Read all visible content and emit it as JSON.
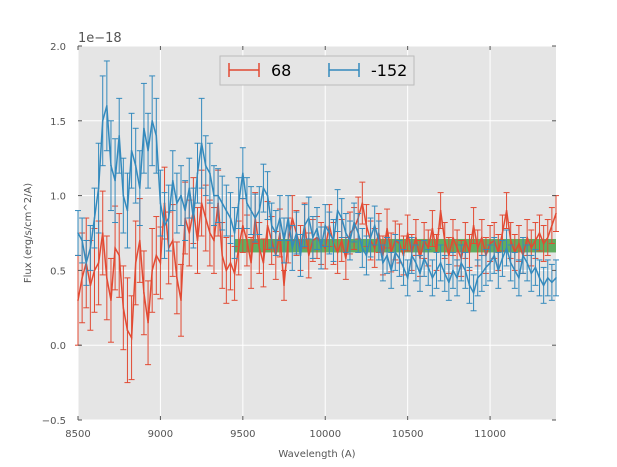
{
  "chart_data": {
    "type": "line",
    "subtype": "errorbar",
    "title": "",
    "xlabel": "Wavelength (A)",
    "ylabel": "Flux (erg/s/cm^2/A)",
    "xlim": [
      8500,
      11400
    ],
    "ylim": [
      -0.5,
      2.0
    ],
    "offset_text": "1e−18",
    "x_ticks": [
      8500,
      9000,
      9500,
      10000,
      10500,
      11000
    ],
    "x_tick_labels": [
      "8500",
      "9000",
      "9500",
      "10000",
      "10500",
      "11000"
    ],
    "y_ticks": [
      -0.5,
      0.0,
      0.5,
      1.0,
      1.5,
      2.0
    ],
    "y_tick_labels": [
      "−0.5",
      "0.0",
      "0.5",
      "1.0",
      "1.5",
      "2.0"
    ],
    "grid": true,
    "legend_position": "top-center",
    "band": {
      "x": [
        9450,
        11400
      ],
      "y": [
        0.62,
        0.71
      ],
      "color": "#339933"
    },
    "series": [
      {
        "name": "68",
        "color": "#E24A33",
        "x": [
          8500,
          8525,
          8550,
          8575,
          8600,
          8625,
          8650,
          8675,
          8700,
          8725,
          8750,
          8775,
          8800,
          8825,
          8850,
          8875,
          8900,
          8925,
          8950,
          8975,
          9000,
          9025,
          9050,
          9075,
          9100,
          9125,
          9150,
          9175,
          9200,
          9225,
          9250,
          9275,
          9300,
          9325,
          9350,
          9375,
          9400,
          9425,
          9450,
          9475,
          9500,
          9525,
          9550,
          9575,
          9600,
          9625,
          9650,
          9675,
          9700,
          9725,
          9750,
          9775,
          9800,
          9825,
          9850,
          9875,
          9900,
          9925,
          9950,
          9975,
          10000,
          10025,
          10050,
          10075,
          10100,
          10125,
          10150,
          10175,
          10200,
          10225,
          10250,
          10275,
          10300,
          10325,
          10350,
          10375,
          10400,
          10425,
          10450,
          10475,
          10500,
          10525,
          10550,
          10575,
          10600,
          10625,
          10650,
          10675,
          10700,
          10725,
          10750,
          10775,
          10800,
          10825,
          10850,
          10875,
          10900,
          10925,
          10950,
          10975,
          11000,
          11025,
          11050,
          11075,
          11100,
          11125,
          11150,
          11175,
          11200,
          11225,
          11250,
          11275,
          11300,
          11325,
          11350,
          11375,
          11400
        ],
        "y": [
          0.3,
          0.45,
          0.55,
          0.4,
          0.5,
          0.55,
          0.75,
          0.45,
          0.3,
          0.65,
          0.6,
          0.25,
          0.1,
          0.05,
          0.55,
          0.7,
          0.35,
          0.15,
          0.5,
          0.6,
          0.55,
          0.95,
          0.65,
          0.7,
          0.45,
          0.3,
          0.85,
          0.75,
          0.9,
          0.7,
          0.95,
          0.85,
          0.75,
          0.7,
          0.95,
          0.6,
          0.5,
          0.55,
          0.48,
          0.65,
          0.8,
          0.7,
          0.55,
          0.85,
          0.65,
          0.55,
          0.8,
          0.7,
          0.6,
          0.75,
          0.4,
          0.7,
          0.85,
          0.75,
          0.65,
          0.8,
          0.6,
          0.7,
          0.72,
          0.68,
          0.65,
          0.8,
          0.68,
          0.62,
          0.7,
          0.58,
          0.75,
          0.78,
          0.85,
          0.95,
          0.8,
          0.7,
          0.65,
          0.75,
          0.6,
          0.78,
          0.62,
          0.7,
          0.68,
          0.6,
          0.75,
          0.62,
          0.72,
          0.58,
          0.7,
          0.65,
          0.78,
          0.62,
          0.9,
          0.7,
          0.6,
          0.72,
          0.65,
          0.58,
          0.7,
          0.62,
          0.8,
          0.65,
          0.72,
          0.6,
          0.68,
          0.7,
          0.62,
          0.75,
          0.9,
          0.7,
          0.62,
          0.68,
          0.6,
          0.72,
          0.65,
          0.7,
          0.75,
          0.68,
          0.72,
          0.8,
          0.88
        ],
        "err": [
          0.3,
          0.3,
          0.3,
          0.3,
          0.28,
          0.28,
          0.28,
          0.28,
          0.28,
          0.28,
          0.28,
          0.28,
          0.35,
          0.28,
          0.28,
          0.28,
          0.28,
          0.28,
          0.28,
          0.26,
          0.24,
          0.24,
          0.24,
          0.24,
          0.24,
          0.24,
          0.24,
          0.22,
          0.22,
          0.22,
          0.22,
          0.22,
          0.22,
          0.22,
          0.22,
          0.22,
          0.22,
          0.18,
          0.18,
          0.18,
          0.18,
          0.17,
          0.17,
          0.17,
          0.17,
          0.16,
          0.16,
          0.16,
          0.16,
          0.16,
          0.1,
          0.15,
          0.15,
          0.15,
          0.15,
          0.15,
          0.15,
          0.14,
          0.14,
          0.14,
          0.14,
          0.14,
          0.14,
          0.14,
          0.14,
          0.14,
          0.14,
          0.14,
          0.14,
          0.14,
          0.14,
          0.13,
          0.13,
          0.13,
          0.13,
          0.13,
          0.13,
          0.13,
          0.13,
          0.13,
          0.12,
          0.12,
          0.12,
          0.12,
          0.12,
          0.12,
          0.12,
          0.12,
          0.12,
          0.12,
          0.12,
          0.12,
          0.12,
          0.12,
          0.12,
          0.12,
          0.12,
          0.12,
          0.12,
          0.12,
          0.12,
          0.12,
          0.12,
          0.12,
          0.12,
          0.12,
          0.12,
          0.12,
          0.12,
          0.12,
          0.12,
          0.12,
          0.12,
          0.12,
          0.12,
          0.12,
          0.12
        ]
      },
      {
        "name": "-152",
        "color": "#348ABD",
        "x": [
          8500,
          8525,
          8550,
          8575,
          8600,
          8625,
          8650,
          8675,
          8700,
          8725,
          8750,
          8775,
          8800,
          8825,
          8850,
          8875,
          8900,
          8925,
          8950,
          8975,
          9000,
          9025,
          9050,
          9075,
          9100,
          9125,
          9150,
          9175,
          9200,
          9225,
          9250,
          9275,
          9300,
          9325,
          9350,
          9375,
          9400,
          9425,
          9450,
          9475,
          9500,
          9525,
          9550,
          9575,
          9600,
          9625,
          9650,
          9675,
          9700,
          9725,
          9750,
          9775,
          9800,
          9825,
          9850,
          9875,
          9900,
          9925,
          9950,
          9975,
          10000,
          10025,
          10050,
          10075,
          10100,
          10125,
          10150,
          10175,
          10200,
          10225,
          10250,
          10275,
          10300,
          10325,
          10350,
          10375,
          10400,
          10425,
          10450,
          10475,
          10500,
          10525,
          10550,
          10575,
          10600,
          10625,
          10650,
          10675,
          10700,
          10725,
          10750,
          10775,
          10800,
          10825,
          10850,
          10875,
          10900,
          10925,
          10950,
          10975,
          11000,
          11025,
          11050,
          11075,
          11100,
          11125,
          11150,
          11175,
          11200,
          11225,
          11250,
          11275,
          11300,
          11325,
          11350,
          11375,
          11400
        ],
        "y": [
          0.75,
          0.7,
          0.55,
          0.65,
          0.85,
          1.05,
          1.5,
          1.6,
          1.2,
          1.1,
          1.4,
          1.0,
          0.9,
          1.3,
          1.2,
          1.05,
          1.45,
          1.3,
          1.5,
          1.4,
          0.95,
          0.8,
          0.85,
          1.1,
          0.95,
          1.0,
          0.9,
          1.05,
          0.85,
          1.15,
          1.35,
          1.2,
          1.15,
          1.0,
          1.0,
          0.95,
          0.9,
          0.85,
          0.75,
          0.95,
          1.15,
          0.95,
          0.9,
          0.85,
          0.9,
          1.05,
          1.0,
          0.8,
          0.75,
          0.85,
          0.7,
          0.85,
          0.65,
          0.75,
          0.6,
          0.8,
          0.85,
          0.72,
          0.78,
          0.65,
          0.8,
          0.75,
          0.7,
          0.9,
          0.85,
          0.75,
          0.7,
          0.82,
          0.75,
          0.65,
          0.6,
          0.72,
          0.8,
          0.7,
          0.55,
          0.6,
          0.5,
          0.62,
          0.58,
          0.52,
          0.45,
          0.6,
          0.55,
          0.48,
          0.58,
          0.52,
          0.45,
          0.5,
          0.55,
          0.48,
          0.42,
          0.5,
          0.45,
          0.55,
          0.5,
          0.4,
          0.35,
          0.45,
          0.48,
          0.52,
          0.55,
          0.6,
          0.5,
          0.58,
          0.65,
          0.55,
          0.5,
          0.45,
          0.6,
          0.55,
          0.48,
          0.52,
          0.45,
          0.4,
          0.45,
          0.42,
          0.45
        ],
        "err": [
          0.15,
          0.15,
          0.15,
          0.15,
          0.2,
          0.3,
          0.3,
          0.3,
          0.3,
          0.28,
          0.25,
          0.25,
          0.25,
          0.25,
          0.25,
          0.25,
          0.3,
          0.25,
          0.3,
          0.25,
          0.22,
          0.22,
          0.22,
          0.2,
          0.2,
          0.2,
          0.2,
          0.2,
          0.2,
          0.2,
          0.3,
          0.2,
          0.2,
          0.2,
          0.18,
          0.18,
          0.17,
          0.17,
          0.17,
          0.17,
          0.17,
          0.17,
          0.16,
          0.16,
          0.16,
          0.16,
          0.16,
          0.15,
          0.15,
          0.15,
          0.15,
          0.15,
          0.15,
          0.14,
          0.14,
          0.14,
          0.14,
          0.14,
          0.14,
          0.14,
          0.14,
          0.14,
          0.14,
          0.14,
          0.13,
          0.13,
          0.13,
          0.13,
          0.13,
          0.13,
          0.13,
          0.13,
          0.13,
          0.13,
          0.12,
          0.12,
          0.12,
          0.12,
          0.12,
          0.12,
          0.12,
          0.12,
          0.12,
          0.12,
          0.12,
          0.12,
          0.12,
          0.12,
          0.12,
          0.12,
          0.12,
          0.12,
          0.12,
          0.12,
          0.12,
          0.12,
          0.12,
          0.12,
          0.12,
          0.12,
          0.12,
          0.12,
          0.12,
          0.12,
          0.12,
          0.12,
          0.12,
          0.12,
          0.12,
          0.12,
          0.12,
          0.12,
          0.12,
          0.12,
          0.12,
          0.12,
          0.12
        ]
      }
    ]
  }
}
